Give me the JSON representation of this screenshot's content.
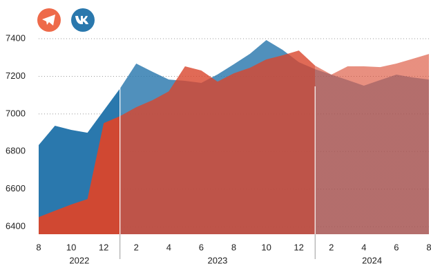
{
  "chart_data": {
    "type": "area",
    "categories": [
      "8",
      null,
      "10",
      null,
      "12",
      null,
      "2",
      null,
      "4",
      null,
      "6",
      null,
      "8",
      null,
      "10",
      null,
      "12",
      null,
      "2",
      null,
      "4",
      null,
      "6",
      null,
      "8"
    ],
    "years": [
      "2022",
      "2023",
      "2024"
    ],
    "series": [
      {
        "color": "#2a78ad",
        "values": [
          6834,
          6937,
          6915,
          6900,
          7018,
          7135,
          7268,
          7224,
          7183,
          7176,
          7165,
          7210,
          7264,
          7320,
          7393,
          7341,
          7275,
          7238,
          7209,
          7180,
          7150,
          7180,
          7209,
          7194,
          7183
        ]
      },
      {
        "color": "#d9452c",
        "values": [
          6451,
          6485,
          6518,
          6547,
          6951,
          6988,
          7036,
          7073,
          7120,
          7253,
          7231,
          7172,
          7216,
          7246,
          7290,
          7312,
          7337,
          7257,
          7209,
          7253,
          7253,
          7249,
          7268,
          7293,
          7319
        ]
      }
    ],
    "ylim": [
      6360,
      7420
    ],
    "yticks": [
      6400,
      6600,
      6800,
      7000,
      7200,
      7400
    ],
    "grid": true
  }
}
